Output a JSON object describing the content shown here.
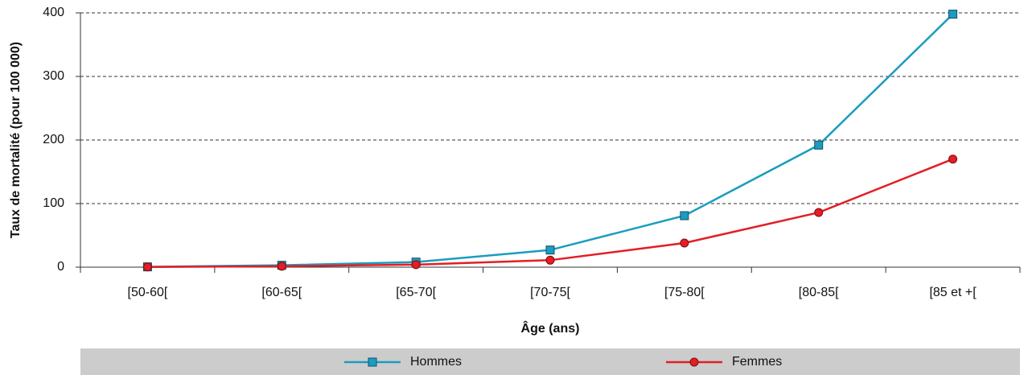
{
  "chart_data": {
    "type": "line",
    "y_label": "Taux de mortalité (pour 100 000)",
    "x_label": "Âge (ans)",
    "categories": [
      "[50-60[",
      "[60-65[",
      "[65-70[",
      "[70-75[",
      "[75-80[",
      "[80-85[",
      "[85 et +["
    ],
    "series": [
      {
        "name": "Hommes",
        "color": "#1b9cc0",
        "marker": "square",
        "values": [
          0.5,
          3,
          8,
          27,
          81,
          192,
          398
        ]
      },
      {
        "name": "Femmes",
        "color": "#e31e24",
        "marker": "circle",
        "values": [
          0.3,
          1.5,
          4,
          11,
          38,
          86,
          170
        ]
      }
    ],
    "ylim": [
      0,
      400
    ],
    "yticks": [
      0,
      100,
      200,
      300,
      400
    ],
    "grid": true,
    "legend": "bottom"
  }
}
